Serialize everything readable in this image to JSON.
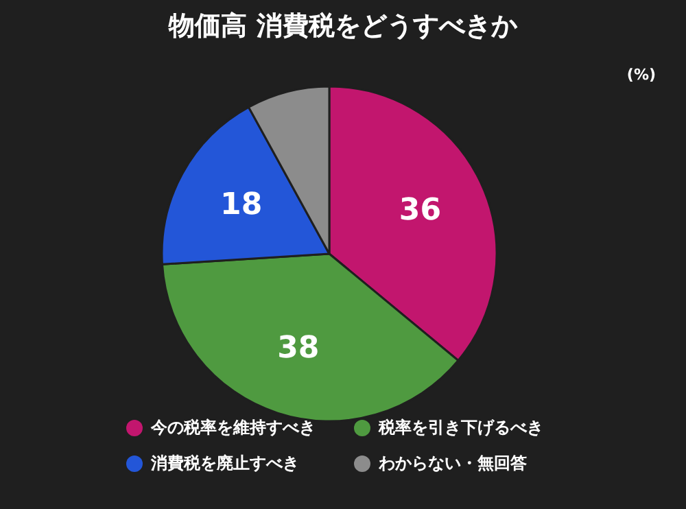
{
  "chart_data": {
    "type": "pie",
    "title": "物価高 消費税をどうすべきか",
    "annotations": [
      "(%)"
    ],
    "categories": [
      "今の税率を維持すべき",
      "税率を引き下げるべき",
      "消費税を廃止すべき",
      "わからない・無回答"
    ],
    "values": [
      36,
      38,
      18,
      8
    ],
    "value_labels": [
      "36",
      "38",
      "18",
      null
    ],
    "colors": [
      "#c2166e",
      "#4f9a40",
      "#2356d8",
      "#8c8c8c"
    ],
    "legend": "bottom"
  }
}
